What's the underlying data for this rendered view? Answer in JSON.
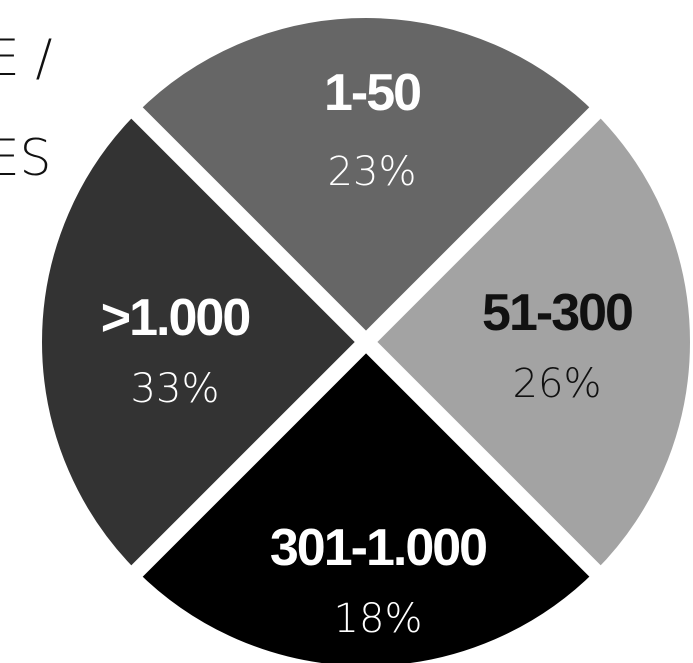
{
  "title_fragments": [
    "E /",
    "ES"
  ],
  "chart_data": {
    "type": "pie",
    "title": "",
    "slices": [
      {
        "label": "1-50",
        "value": 23,
        "display": "23%",
        "color": "#666666",
        "text_color": "#ffffff"
      },
      {
        "label": "51-300",
        "value": 26,
        "display": "26%",
        "color": "#a3a3a3",
        "text_color": "#111111"
      },
      {
        "label": "301-1.000",
        "value": 18,
        "display": "18%",
        "color": "#000000",
        "text_color": "#ffffff"
      },
      {
        "label": ">1.000",
        "value": 33,
        "display": "33%",
        "color": "#333333",
        "text_color": "#ffffff"
      }
    ],
    "separator_color": "#ffffff"
  }
}
